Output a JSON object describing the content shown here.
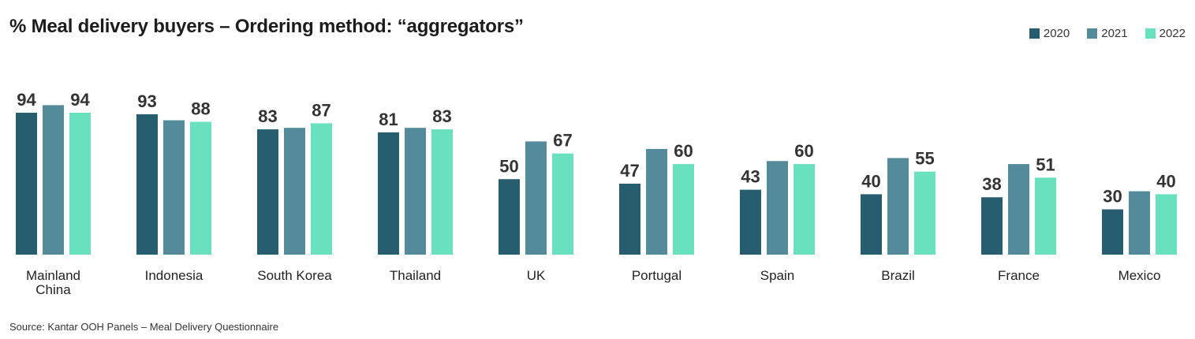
{
  "chart_data": {
    "type": "bar",
    "title": "% Meal delivery buyers – Ordering method: “aggregators”",
    "categories": [
      "Mainland China",
      "Indonesia",
      "South Korea",
      "Thailand",
      "UK",
      "Portugal",
      "Spain",
      "Brazil",
      "France",
      "Mexico"
    ],
    "series": [
      {
        "name": "2020",
        "color": "#265E70",
        "values": [
          94,
          93,
          83,
          81,
          50,
          47,
          43,
          40,
          38,
          30
        ],
        "show_labels": true
      },
      {
        "name": "2021",
        "color": "#548B9B",
        "values": [
          99,
          89,
          84,
          84,
          75,
          70,
          62,
          64,
          60,
          42
        ],
        "show_labels": false
      },
      {
        "name": "2022",
        "color": "#69E0BE",
        "values": [
          94,
          88,
          87,
          83,
          67,
          60,
          60,
          55,
          51,
          40
        ],
        "show_labels": true
      }
    ],
    "xlabel": "",
    "ylabel": "",
    "ylim": [
      0,
      100
    ],
    "legend_position": "top-right",
    "grid": false
  },
  "source": "Source: Kantar OOH Panels – Meal Delivery Questionnaire"
}
